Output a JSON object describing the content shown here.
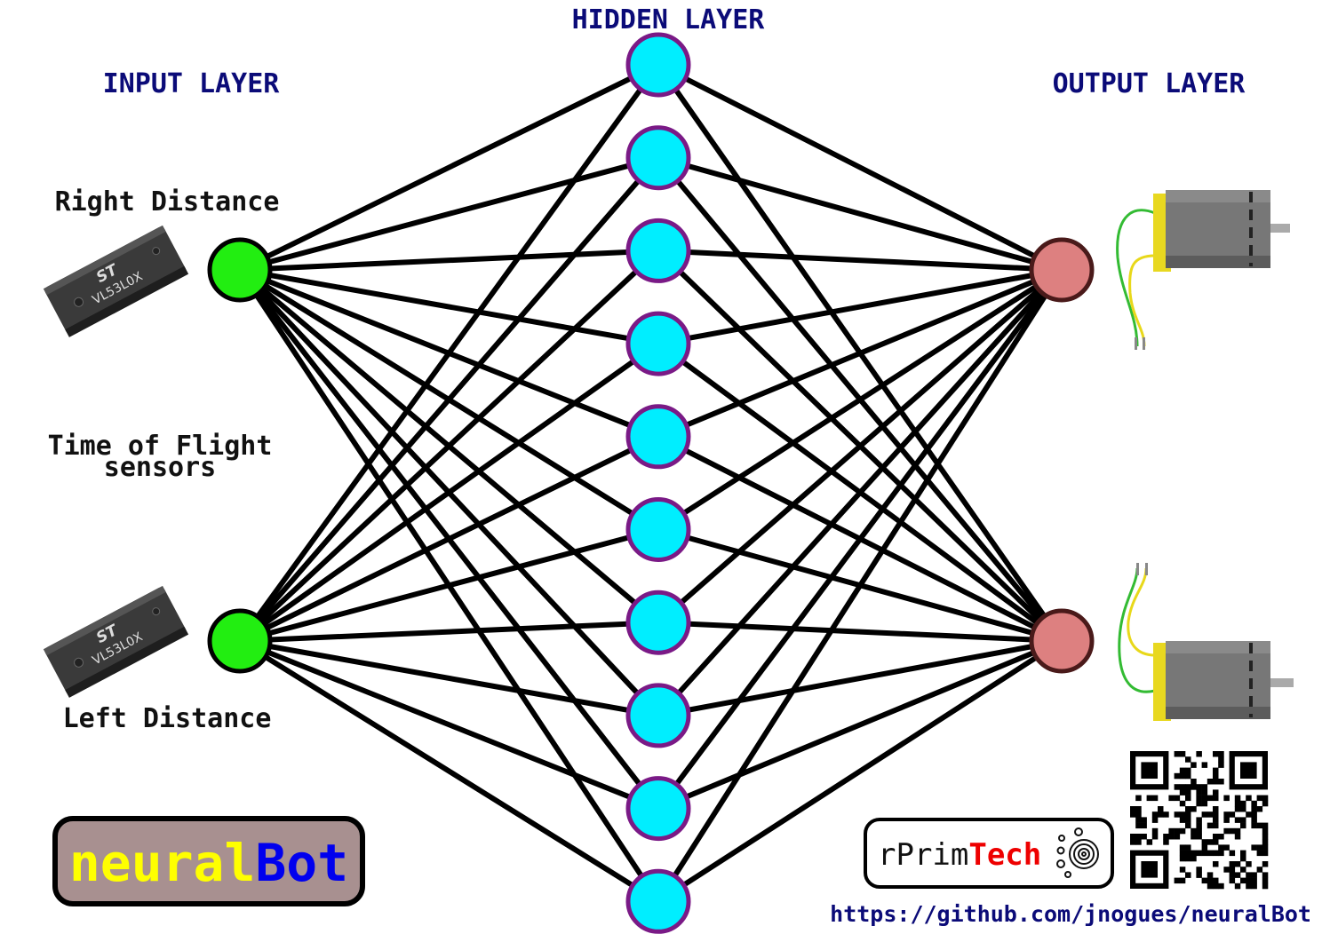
{
  "headings": {
    "input": "INPUT LAYER",
    "hidden": "HIDDEN LAYER",
    "output": "OUTPUT LAYER"
  },
  "inputs": [
    {
      "label": "Right Distance",
      "chip_text": "VL53L0X",
      "chip_logo": "ST"
    },
    {
      "label": "Left Distance",
      "chip_text": "VL53L0X",
      "chip_logo": "ST"
    }
  ],
  "sensor_caption": {
    "line1": "Time of Flight",
    "line2": "sensors"
  },
  "hidden_count": 10,
  "outputs": [
    {
      "device": "dc-motor"
    },
    {
      "device": "dc-motor"
    }
  ],
  "brand": {
    "part1": "neural",
    "part2": "Bot"
  },
  "company": {
    "part1": "rPrim",
    "part2": "Tech"
  },
  "url": "https://github.com/jnogues/neuralBot",
  "colors": {
    "heading": "#0b0b78",
    "input_node": "#22ee11",
    "hidden_node": "#00eeff",
    "hidden_stroke": "#7a1a86",
    "output_node": "#dd8080",
    "output_stroke": "#4a1a1a",
    "edge": "#000000",
    "brand_bg": "#a89090",
    "brand_part1": "#ffff00",
    "brand_part2": "#0000ee",
    "company_part2": "#ee0000"
  }
}
